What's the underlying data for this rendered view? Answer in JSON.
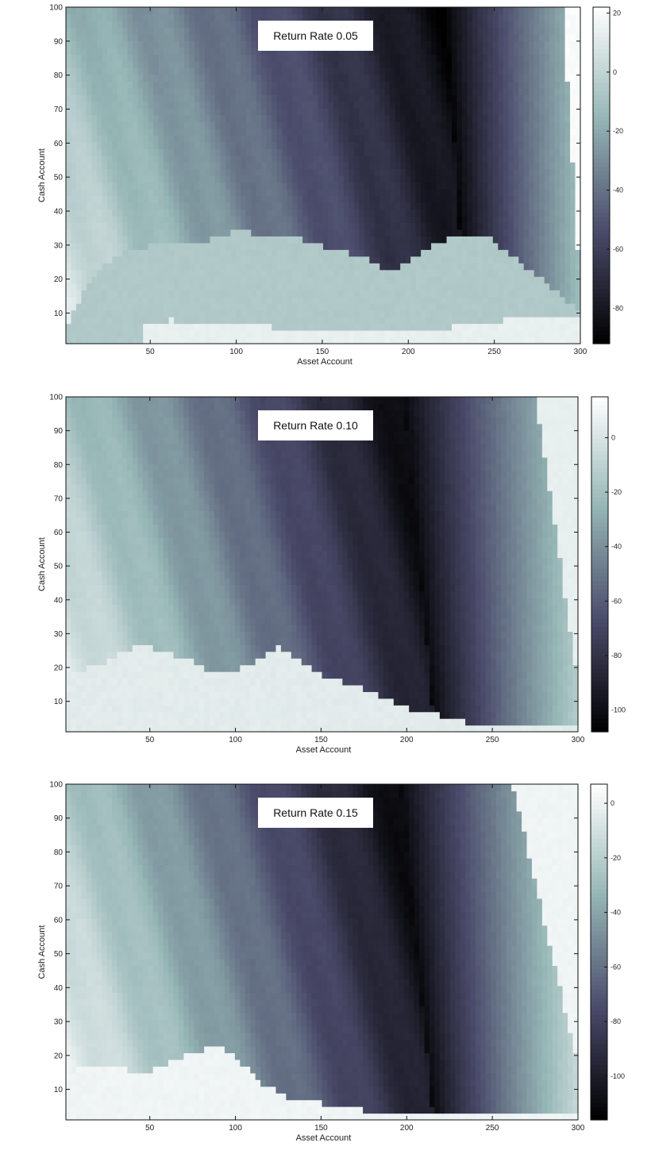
{
  "chart_data": [
    {
      "type": "heatmap",
      "title": "Return Rate 0.05",
      "xlabel": "Asset Account",
      "ylabel": "Cash Account",
      "xlim": [
        1,
        300
      ],
      "ylim": [
        1,
        100
      ],
      "xticks": [
        50,
        100,
        150,
        200,
        250,
        300
      ],
      "yticks": [
        10,
        20,
        30,
        40,
        50,
        60,
        70,
        80,
        90,
        100
      ],
      "colorbar": {
        "ticks": [
          20,
          0,
          -20,
          -40,
          -60,
          -80
        ],
        "range": [
          -92,
          22
        ],
        "colormap": "bone"
      },
      "surface": {
        "plateau_value": -6,
        "plateau_edge": [
          [
            1,
            6
          ],
          [
            15,
            20
          ],
          [
            30,
            27
          ],
          [
            50,
            30
          ],
          [
            75,
            30
          ],
          [
            100,
            34
          ],
          [
            130,
            33
          ],
          [
            150,
            30
          ],
          [
            175,
            26
          ],
          [
            190,
            22
          ],
          [
            210,
            29
          ],
          [
            230,
            33
          ],
          [
            245,
            33
          ],
          [
            265,
            25
          ],
          [
            285,
            17
          ],
          [
            300,
            10
          ]
        ],
        "bright_patch_value": 14,
        "bright_patch_edge": [
          [
            45,
            6
          ],
          [
            60,
            8
          ],
          [
            100,
            7
          ],
          [
            140,
            5
          ],
          [
            180,
            4
          ],
          [
            210,
            5
          ],
          [
            240,
            7
          ],
          [
            270,
            9
          ]
        ],
        "valley_x": 222,
        "valley_value": -90,
        "valley_slope": 0.4,
        "left_edge_value": -15,
        "right_edge_value": -12,
        "top_right_corner_value": 20,
        "top_right_corner_edge_x": [
          290,
          300
        ]
      }
    },
    {
      "type": "heatmap",
      "title": "Return Rate 0.10",
      "xlabel": "Asset Account",
      "ylabel": "Cash Account",
      "xlim": [
        1,
        300
      ],
      "ylim": [
        1,
        100
      ],
      "xticks": [
        50,
        100,
        150,
        200,
        250,
        300
      ],
      "yticks": [
        10,
        20,
        30,
        40,
        50,
        60,
        70,
        80,
        90,
        100
      ],
      "colorbar": {
        "ticks": [
          0,
          -20,
          -40,
          -60,
          -80,
          -100
        ],
        "range": [
          -108,
          15
        ],
        "colormap": "bone"
      },
      "surface": {
        "plateau_value": 4,
        "plateau_edge": [
          [
            1,
            18
          ],
          [
            25,
            22
          ],
          [
            45,
            27
          ],
          [
            70,
            23
          ],
          [
            90,
            18
          ],
          [
            105,
            20
          ],
          [
            125,
            26
          ],
          [
            150,
            18
          ],
          [
            175,
            14
          ],
          [
            200,
            8
          ],
          [
            220,
            6
          ],
          [
            240,
            3
          ]
        ],
        "bright_patch_value": 12,
        "bright_patch_edge": [],
        "valley_x": 198,
        "valley_value": -104,
        "valley_slope": 0.62,
        "left_edge_value": -20,
        "right_edge_value": -14,
        "top_right_corner_value": 6,
        "top_right_corner_edge_x": [
          275,
          300
        ]
      }
    },
    {
      "type": "heatmap",
      "title": "Return Rate 0.15",
      "xlabel": "Asset Account",
      "ylabel": "Cash Account",
      "xlim": [
        1,
        300
      ],
      "ylim": [
        1,
        100
      ],
      "xticks": [
        50,
        100,
        150,
        200,
        250,
        300
      ],
      "yticks": [
        10,
        20,
        30,
        40,
        50,
        60,
        70,
        80,
        90,
        100
      ],
      "colorbar": {
        "ticks": [
          0,
          -20,
          -40,
          -60,
          -80,
          -100
        ],
        "range": [
          -116,
          7
        ],
        "colormap": "bone"
      },
      "surface": {
        "plateau_value": 1,
        "plateau_edge": [
          [
            1,
            15
          ],
          [
            25,
            18
          ],
          [
            45,
            14
          ],
          [
            70,
            20
          ],
          [
            88,
            23
          ],
          [
            100,
            20
          ],
          [
            115,
            12
          ],
          [
            130,
            8
          ],
          [
            150,
            6
          ],
          [
            175,
            4
          ],
          [
            195,
            2
          ]
        ],
        "bright_patch_value": 4,
        "bright_patch_edge": [],
        "valley_x": 196,
        "valley_value": -112,
        "valley_slope": 0.66,
        "left_edge_value": -25,
        "right_edge_value": -15,
        "top_right_corner_value": 1,
        "top_right_corner_edge_x": [
          262,
          300
        ]
      }
    }
  ]
}
